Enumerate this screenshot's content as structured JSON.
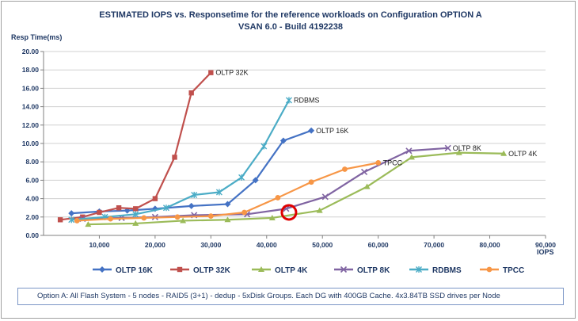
{
  "chart_data": {
    "type": "line",
    "title_line1": "ESTIMATED IOPS vs. Responsetime for the reference workloads on Configuration OPTION A",
    "title_line2": "VSAN 6.0 - Build 4192238",
    "ylabel": "Resp Time(ms)",
    "xlabel": "IOPS",
    "xlim": [
      0,
      90000
    ],
    "ylim": [
      0,
      20
    ],
    "xticks": [
      10000,
      20000,
      30000,
      40000,
      50000,
      60000,
      70000,
      80000,
      90000
    ],
    "xtick_labels": [
      "10,000",
      "20,000",
      "30,000",
      "40,000",
      "50,000",
      "60,000",
      "70,000",
      "80,000",
      "90,000"
    ],
    "yticks": [
      0,
      2,
      4,
      6,
      8,
      10,
      12,
      14,
      16,
      18,
      20
    ],
    "ytick_labels": [
      "0.00",
      "2.00",
      "4.00",
      "6.00",
      "8.00",
      "10.00",
      "12.00",
      "14.00",
      "16.00",
      "18.00",
      "20.00"
    ],
    "grid": true,
    "legend_position": "bottom",
    "series": [
      {
        "name": "OLTP 16K",
        "color": "#4472c4",
        "marker": "diamond",
        "end_label": "OLTP 16K",
        "x": [
          5000,
          10000,
          15000,
          20000,
          26500,
          33000,
          38000,
          43000,
          48000
        ],
        "y": [
          2.4,
          2.6,
          2.7,
          2.9,
          3.2,
          3.4,
          6.0,
          10.3,
          11.4
        ]
      },
      {
        "name": "OLTP 32K",
        "color": "#c0504d",
        "marker": "square",
        "end_label": "OLTP 32K",
        "x": [
          3000,
          7000,
          10000,
          13500,
          16500,
          20000,
          23500,
          26500,
          30000
        ],
        "y": [
          1.7,
          2.0,
          2.5,
          3.0,
          2.9,
          4.0,
          8.5,
          15.5,
          17.7
        ]
      },
      {
        "name": "OLTP 4K",
        "color": "#9bbb59",
        "marker": "triangle",
        "end_label": "OLTP 4K",
        "x": [
          8000,
          16500,
          25000,
          33000,
          41000,
          49500,
          58000,
          66000,
          74500,
          82500
        ],
        "y": [
          1.2,
          1.3,
          1.6,
          1.7,
          1.9,
          2.7,
          5.3,
          8.5,
          9.0,
          8.9
        ]
      },
      {
        "name": "OLTP 8K",
        "color": "#8064a2",
        "marker": "x",
        "end_label": "OLTP 8K",
        "x": [
          7000,
          14000,
          20000,
          27000,
          36500,
          43500,
          50500,
          57500,
          65500,
          72500
        ],
        "y": [
          1.8,
          1.9,
          2.0,
          2.2,
          2.3,
          2.9,
          4.2,
          6.9,
          9.2,
          9.5
        ]
      },
      {
        "name": "RDBMS",
        "color": "#4bacc6",
        "marker": "asterisk",
        "end_label": "RDBMS",
        "x": [
          5000,
          11000,
          16500,
          22000,
          27000,
          31500,
          35500,
          39500,
          44000
        ],
        "y": [
          1.7,
          2.0,
          2.3,
          3.0,
          4.4,
          4.7,
          6.3,
          9.7,
          14.7
        ]
      },
      {
        "name": "TPCC",
        "color": "#f79646",
        "marker": "circle",
        "end_label": "TPCC",
        "x": [
          6000,
          12000,
          18000,
          24000,
          30000,
          36000,
          42000,
          48000,
          54000,
          60000
        ],
        "y": [
          1.6,
          1.8,
          1.9,
          2.0,
          2.1,
          2.5,
          4.1,
          5.8,
          7.2,
          7.9
        ]
      }
    ],
    "annotations": [
      {
        "type": "circle",
        "color": "#e00000",
        "x": 44000,
        "y": 2.5
      }
    ]
  },
  "note": "Option A: All Flash System - 5 nodes - RAID5 (3+1) - dedup - 5xDisk Groups. Each DG with 400GB Cache. 4x3.84TB SSD drives per Node"
}
